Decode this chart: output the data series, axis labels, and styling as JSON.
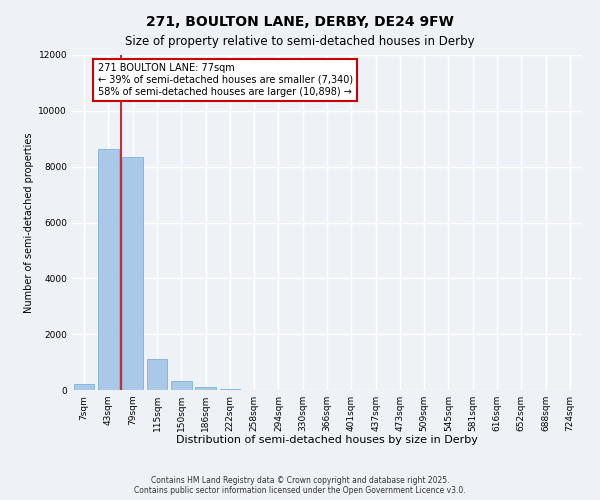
{
  "title": "271, BOULTON LANE, DERBY, DE24 9FW",
  "subtitle": "Size of property relative to semi-detached houses in Derby",
  "xlabel": "Distribution of semi-detached houses by size in Derby",
  "ylabel": "Number of semi-detached properties",
  "categories": [
    "7sqm",
    "43sqm",
    "79sqm",
    "115sqm",
    "150sqm",
    "186sqm",
    "222sqm",
    "258sqm",
    "294sqm",
    "330sqm",
    "366sqm",
    "401sqm",
    "437sqm",
    "473sqm",
    "509sqm",
    "545sqm",
    "581sqm",
    "616sqm",
    "652sqm",
    "688sqm",
    "724sqm"
  ],
  "values": [
    200,
    8650,
    8350,
    1100,
    320,
    100,
    50,
    0,
    0,
    0,
    0,
    0,
    0,
    0,
    0,
    0,
    0,
    0,
    0,
    0,
    0
  ],
  "bar_color": "#aac8e8",
  "bar_edge_color": "#6aaad4",
  "vline_color": "#cc0000",
  "annotation_text": "271 BOULTON LANE: 77sqm\n← 39% of semi-detached houses are smaller (7,340)\n58% of semi-detached houses are larger (10,898) →",
  "annotation_box_color": "#ffffff",
  "annotation_box_edge_color": "#cc0000",
  "ylim": [
    0,
    12000
  ],
  "yticks": [
    0,
    2000,
    4000,
    6000,
    8000,
    10000,
    12000
  ],
  "background_color": "#eef2f7",
  "grid_color": "#ffffff",
  "footer_line1": "Contains HM Land Registry data © Crown copyright and database right 2025.",
  "footer_line2": "Contains public sector information licensed under the Open Government Licence v3.0.",
  "title_fontsize": 10,
  "subtitle_fontsize": 8.5,
  "xlabel_fontsize": 8,
  "ylabel_fontsize": 7,
  "tick_fontsize": 6.5,
  "annotation_fontsize": 7,
  "footer_fontsize": 5.5
}
